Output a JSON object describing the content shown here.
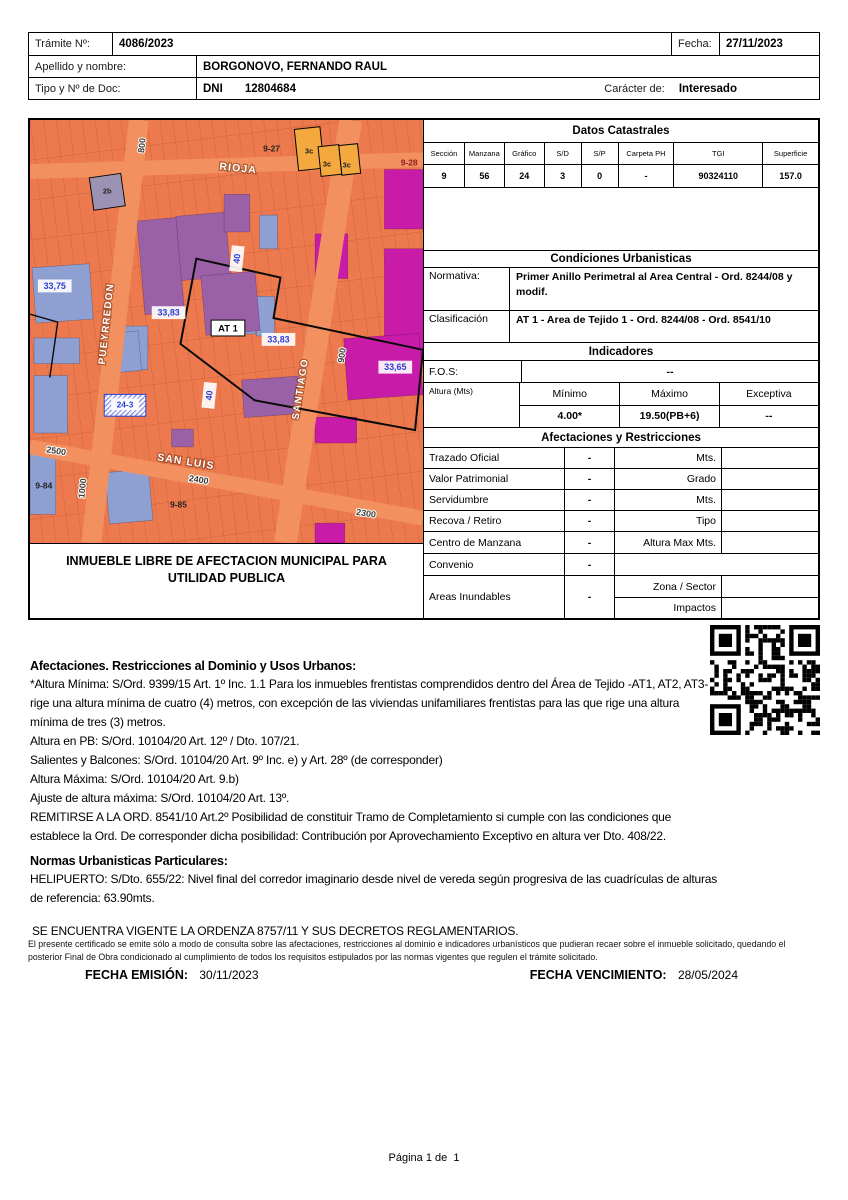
{
  "header": {
    "tramite_label": "Trámite Nº:",
    "tramite_value": "4086/2023",
    "fecha_label": "Fecha:",
    "fecha_value": "27/11/2023",
    "apellido_label": "Apellido y nombre:",
    "apellido_value": "BORGONOVO, FERNANDO RAUL",
    "doc_label": "Tipo y Nº de Doc:",
    "doc_type": "DNI",
    "doc_number": "12804684",
    "caracter_label": "Carácter de:",
    "caracter_value": "Interesado"
  },
  "map": {
    "caption": "INMUEBLE LIBRE DE AFECTACION MUNICIPAL PARA UTILIDAD PUBLICA",
    "streets": [
      {
        "name": "RIOJA"
      },
      {
        "name": "PUEYRREDON"
      },
      {
        "name": "SANTIAGO"
      },
      {
        "name": "SAN LUIS"
      }
    ],
    "street_numbers": [
      "800",
      "900",
      "1000",
      "2500",
      "2400",
      "2300"
    ],
    "block_labels": [
      "9-27",
      "9-28",
      "9-84",
      "9-85"
    ],
    "parcel_labels": [
      "2b",
      "3c",
      "3c",
      "3c",
      "24-3"
    ],
    "zone_label": "AT 1",
    "measures": [
      "33,75",
      "33,83",
      "33,83",
      "33,65",
      "40",
      "40"
    ]
  },
  "catastrales": {
    "title": "Datos Catastrales",
    "columns": [
      "Sección",
      "Manzana",
      "Gráfico",
      "S/D",
      "S/P",
      "Carpeta PH",
      "TGI",
      "Superficie"
    ],
    "values": [
      "9",
      "56",
      "24",
      "3",
      "0",
      "-",
      "90324110",
      "157.0"
    ]
  },
  "condiciones": {
    "title": "Condiciones Urbanisticas",
    "normativa_label": "Normativa:",
    "normativa_value": "Primer Anillo Perimetral al Area Central - Ord. 8244/08 y modif.",
    "clasificacion_label": "Clasificación",
    "clasificacion_value": "AT 1 - Area de Tejido 1 - Ord. 8244/08 - Ord. 8541/10"
  },
  "indicadores": {
    "title": "Indicadores",
    "fos_label": "F.O.S:",
    "fos_value": "--",
    "altura_label": "Altura (Mts)",
    "min_label": "Mínimo",
    "max_label": "Máximo",
    "exceptiva_label": "Exceptiva",
    "min_value": "4.00*",
    "max_value": "19.50(PB+6)",
    "exceptiva_value": "--"
  },
  "afectaciones_tabla": {
    "title": "Afectaciones y Restricciones",
    "rows": [
      {
        "label": "Trazado Oficial",
        "dash": "-",
        "unit": "Mts.",
        "value": ""
      },
      {
        "label": "Valor Patrimonial",
        "dash": "-",
        "unit": "Grado",
        "value": ""
      },
      {
        "label": "Servidumbre",
        "dash": "-",
        "unit": "Mts.",
        "value": ""
      },
      {
        "label": "Recova / Retiro",
        "dash": "-",
        "unit": "Tipo",
        "value": ""
      },
      {
        "label": "Centro de Manzana",
        "dash": "-",
        "unit": "Altura Max Mts.",
        "value": ""
      }
    ],
    "convenio_label": "Convenio",
    "convenio_dash": "-",
    "inundables_label": "Areas Inundables",
    "inundables_dash": "-",
    "zona_label": "Zona / Sector",
    "impactos_label": "Impactos"
  },
  "notes": {
    "heading1": "Afectaciones. Restricciones al Dominio y Usos Urbanos:",
    "p1": " *Altura Mínima: S/Ord. 9399/15 Art. 1º Inc. 1.1 Para los inmuebles frentistas comprendidos dentro del Área de Tejido -AT1, AT2, AT3- rige una altura mínima de cuatro (4) metros, con excepción de las viviendas unifamiliares frentistas para las que rige una altura mínima de tres (3) metros.",
    "p2": "Altura en PB: S/Ord. 10104/20 Art. 12º / Dto. 107/21.",
    "p3": "Salientes y Balcones: S/Ord. 10104/20  Art. 9º Inc. e) y Art. 28º (de corresponder)",
    "p4": "Altura Máxima: S/Ord. 10104/20 Art. 9.b)",
    "p5": "Ajuste de altura máxima: S/Ord. 10104/20 Art. 13º.",
    "p6": "REMITIRSE A LA ORD. 8541/10 Art.2º Posibilidad de constituir Tramo de Completamiento si cumple con las condiciones que establece la Ord. De corresponder dicha posibilidad: Contribución por Aprovechamiento Exceptivo en altura ver Dto. 408/22.",
    "heading2": "Normas Urbanisticas Particulares:",
    "p7": "HELIPUERTO: S/Dto. 655/22: Nivel final del corredor imaginario desde nivel de vereda según progresiva de las cuadrículas de alturas de referencia: 63.90mts.",
    "vigente": "SE ENCUENTRA VIGENTE LA ORDENZA 8757/11 Y SUS DECRETOS REGLAMENTARIOS.",
    "disclaimer": "El presente certificado se emite sólo a modo de consulta sobre las afectaciones, restricciones al dominio e indicadores urbanísticos que pudieran recaer sobre el inmueble solicitado, quedando el posterior Final de Obra condicionado al cumplimiento de todos los requisitos estipulados por las normas vigentes que regulen el trámite solicitado."
  },
  "fechas": {
    "emision_label": "FECHA EMISIÓN:",
    "emision_value": "30/11/2023",
    "vencimiento_label": "FECHA VENCIMIENTO:",
    "vencimiento_value": "28/05/2024"
  },
  "footer": {
    "page_text": "Página 1 de  1"
  },
  "colors": {
    "map_base": "#ed7a4e",
    "map_street": "#f29060",
    "parcel_blue": "#8e9fd2",
    "parcel_purple": "#9b61a6",
    "parcel_magenta": "#c81ba8",
    "parcel_yellow": "#f3a93e",
    "parcel_gray": "#9c93b4",
    "measure_text": "#2b3fd4",
    "border": "#000000"
  }
}
